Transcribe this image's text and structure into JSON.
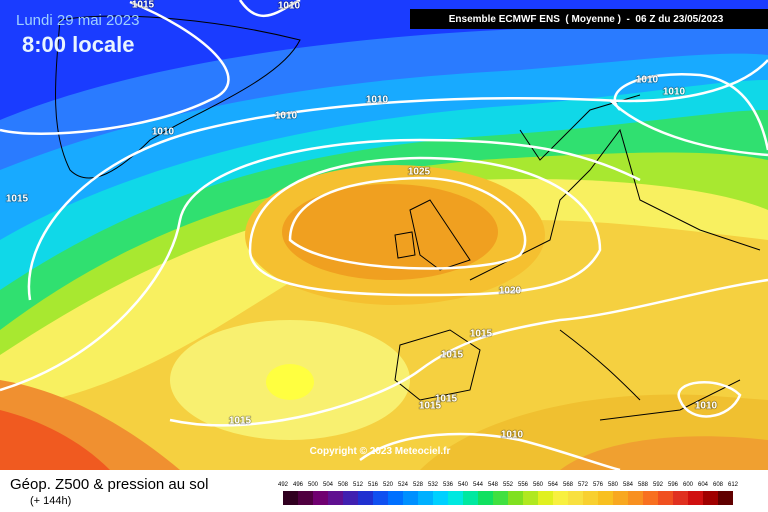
{
  "header": {
    "date": "Lundi 29 mai 2023",
    "time": "8:00 locale",
    "model": "Ensemble ECMWF ENS  ( Moyenne )  -  06 Z du 23/05/2023"
  },
  "isobar_labels": [
    "1015",
    "1010",
    "1010",
    "1010",
    "1010",
    "1015",
    "1010",
    "1010",
    "1025",
    "1020",
    "1015",
    "1015",
    "1015",
    "1015",
    "1015",
    "1010",
    "1010"
  ],
  "copyright": "Copyright © 2023 Meteociel.fr",
  "legend": {
    "title": "Géop. Z500 & pression au sol",
    "subtitle": "(+ 144h)",
    "scale": [
      492,
      496,
      500,
      504,
      508,
      512,
      516,
      520,
      524,
      528,
      532,
      536,
      540,
      544,
      548,
      552,
      556,
      560,
      564,
      568,
      572,
      576,
      580,
      584,
      588,
      592,
      596,
      600,
      604,
      608,
      612
    ]
  }
}
